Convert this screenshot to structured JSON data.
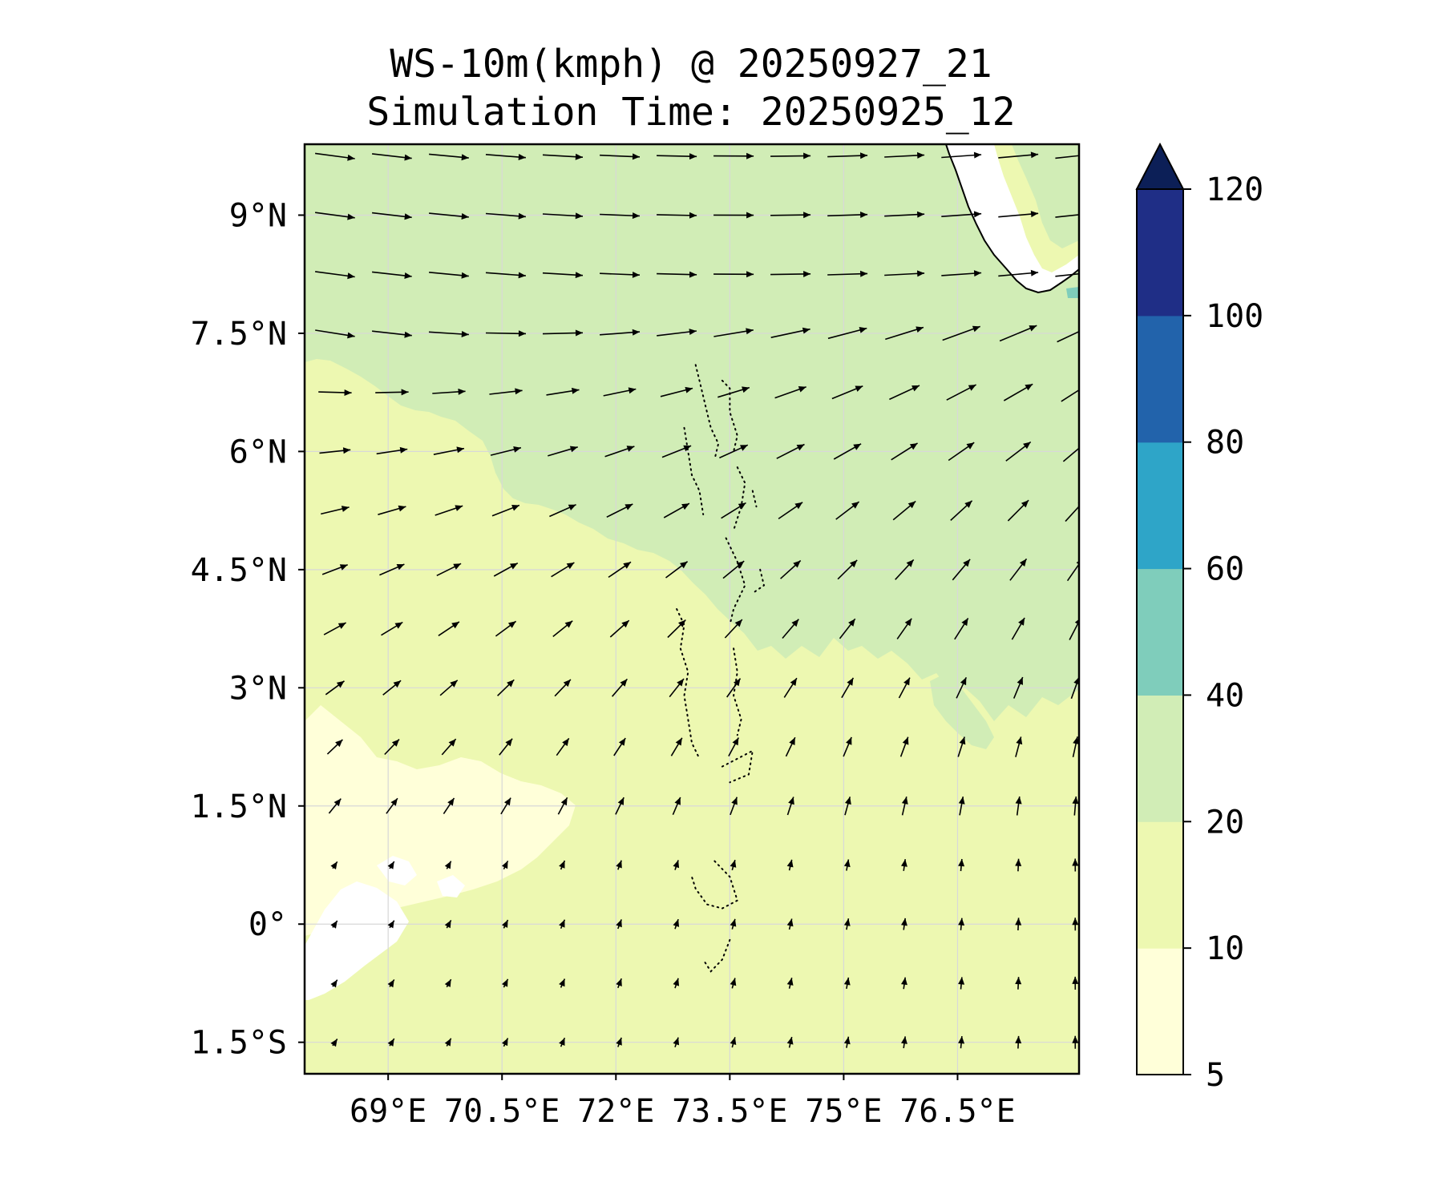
{
  "title": {
    "line1": "WS-10m(kmph) @ 20250927_21",
    "line2": "Simulation Time: 20250925_12"
  },
  "map": {
    "lon_range": [
      67.9,
      78.1
    ],
    "lat_range": [
      -1.9,
      9.9
    ],
    "x_ticks": [
      {
        "value": 69,
        "label": "69°E"
      },
      {
        "value": 70.5,
        "label": "70.5°E"
      },
      {
        "value": 72,
        "label": "72°E"
      },
      {
        "value": 73.5,
        "label": "73.5°E"
      },
      {
        "value": 75,
        "label": "75°E"
      },
      {
        "value": 76.5,
        "label": "76.5°E"
      }
    ],
    "y_ticks": [
      {
        "value": 9,
        "label": "9°N"
      },
      {
        "value": 7.5,
        "label": "7.5°N"
      },
      {
        "value": 6,
        "label": "6°N"
      },
      {
        "value": 4.5,
        "label": "4.5°N"
      },
      {
        "value": 3,
        "label": "3°N"
      },
      {
        "value": 1.5,
        "label": "1.5°N"
      },
      {
        "value": 0,
        "label": "0°"
      },
      {
        "value": -1.5,
        "label": "1.5°S"
      }
    ],
    "gridlines": true
  },
  "colorbar": {
    "levels": [
      {
        "value": 5,
        "label": "5"
      },
      {
        "value": 10,
        "label": "10"
      },
      {
        "value": 20,
        "label": "20"
      },
      {
        "value": 40,
        "label": "40"
      },
      {
        "value": 60,
        "label": "60"
      },
      {
        "value": 80,
        "label": "80"
      },
      {
        "value": 100,
        "label": "100"
      },
      {
        "value": 120,
        "label": "120"
      }
    ],
    "colors": [
      "#ffffd9",
      "#edf8b1",
      "#d1edb6",
      "#7fcdbb",
      "#2ea5c8",
      "#2263ab",
      "#1f2e86"
    ],
    "extend_color": "#0c1f57",
    "extend": "max"
  },
  "colors": {
    "land": "#ffffff",
    "coast": "#000000",
    "atoll": "#000000",
    "arrow": "#000000",
    "grid": "#d8d8d8"
  }
}
